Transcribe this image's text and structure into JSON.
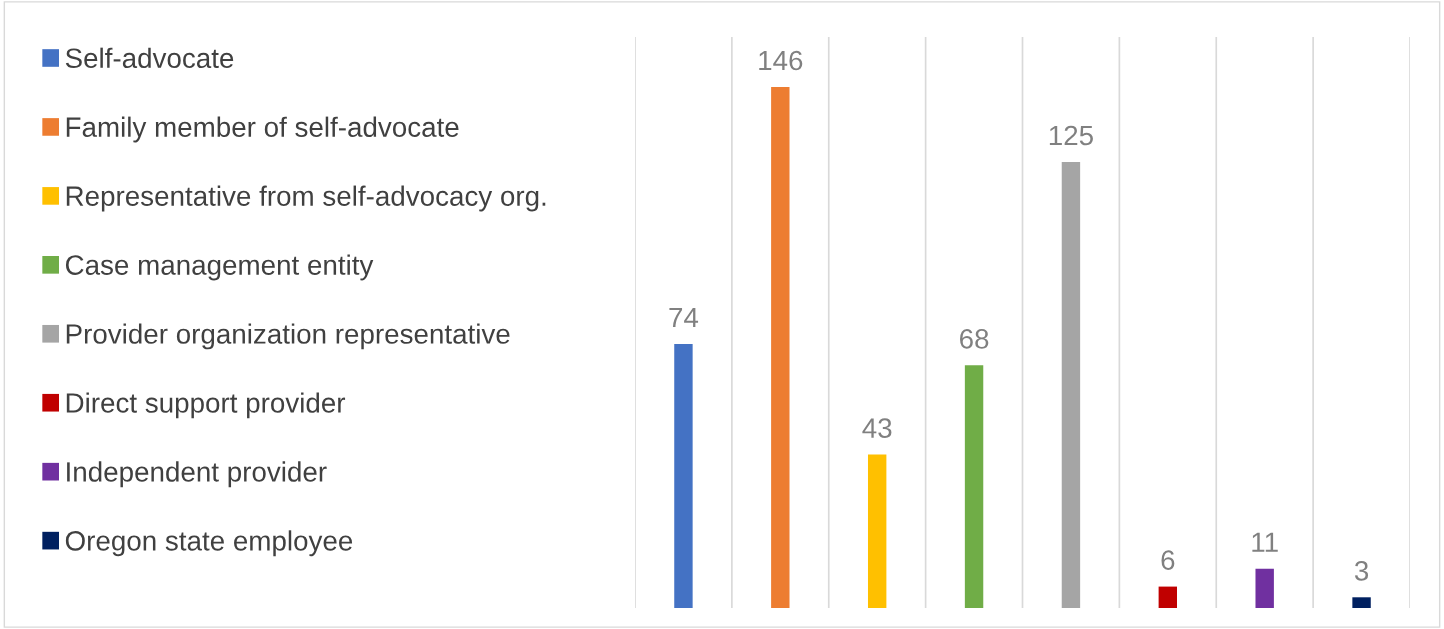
{
  "chart_data": {
    "type": "bar",
    "categories": [
      null,
      null,
      null,
      null,
      null,
      null,
      null,
      null
    ],
    "stacked": true,
    "series": [
      {
        "name": "Self-advocate",
        "color": "#4472c4",
        "values": [
          74,
          null,
          null,
          null,
          null,
          null,
          null,
          null
        ]
      },
      {
        "name": "Family member of self-advocate",
        "color": "#ed7d31",
        "values": [
          null,
          146,
          null,
          null,
          null,
          null,
          null,
          null
        ]
      },
      {
        "name": "Representative from self-advocacy org.",
        "color": "#ffc000",
        "values": [
          null,
          null,
          43,
          null,
          null,
          null,
          null,
          null
        ]
      },
      {
        "name": "Case management entity",
        "color": "#70ad47",
        "values": [
          null,
          null,
          null,
          68,
          null,
          null,
          null,
          null
        ]
      },
      {
        "name": "Provider organization representative",
        "color": "#a5a5a5",
        "values": [
          null,
          null,
          null,
          null,
          125,
          null,
          null,
          null
        ]
      },
      {
        "name": "Direct support provider",
        "color": "#c00000",
        "values": [
          null,
          null,
          null,
          null,
          null,
          6,
          null,
          null
        ]
      },
      {
        "name": "Independent provider",
        "color": "#7030a0",
        "values": [
          null,
          null,
          null,
          null,
          null,
          null,
          11,
          null
        ]
      },
      {
        "name": "Oregon state employee",
        "color": "#002060",
        "values": [
          null,
          null,
          null,
          null,
          null,
          null,
          null,
          3
        ]
      }
    ],
    "ylim": [
      0,
      160
    ],
    "grid": "x",
    "legend": "left",
    "tick_labels": false,
    "data_labels": true
  }
}
